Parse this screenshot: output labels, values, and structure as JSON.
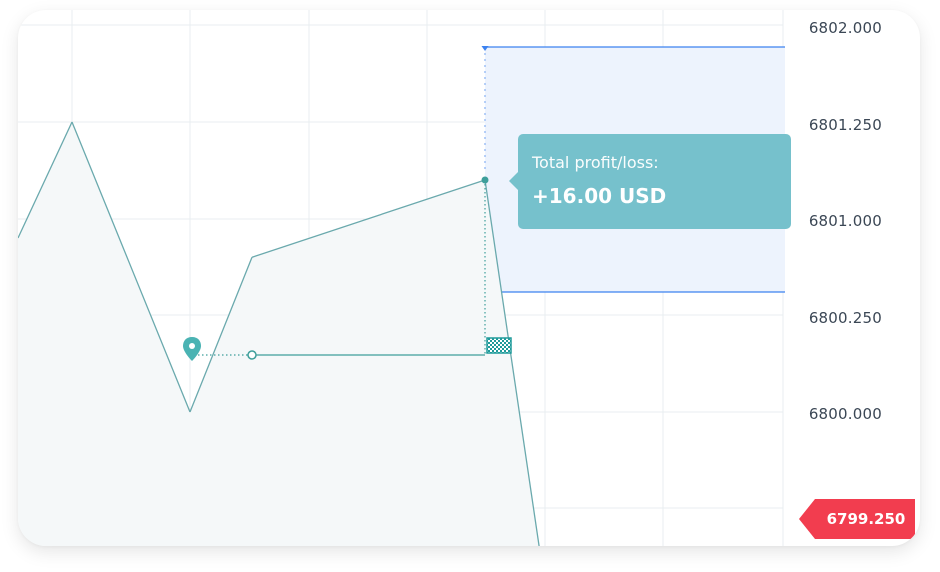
{
  "chart_data": {
    "type": "line",
    "y_ticks": [
      "6802.000",
      "6801.250",
      "6801.000",
      "6800.250",
      "6800.000"
    ],
    "series": [
      {
        "values": [
          6800.75,
          6801.25,
          6800.0,
          6800.667,
          6801.0,
          6799.25
        ]
      }
    ],
    "current_price_label": "6799.250",
    "current_price": 6799.25,
    "entry_price": 6800.25,
    "exit_price": 6801.0,
    "highlight_band": [
      6800.5,
      6802.0
    ],
    "grid": true,
    "area_fill": true
  },
  "tooltip": {
    "label": "Total profit/loss:",
    "value": "+16.00 USD"
  },
  "colors": {
    "line": "#6aa9ad",
    "area": "#f5f8f9",
    "grid": "#e9edf0",
    "band_fill": "#edf3fd",
    "band_line": "#3c82f0",
    "tooltip_bg": "#76c1cc",
    "price_tag": "#f23d4f",
    "entry_marker": "#4ab3b3",
    "exit_flag": "#1f9a9a"
  },
  "icons": {
    "entry": "map-pin-icon",
    "exit": "checkered-flag-icon"
  }
}
